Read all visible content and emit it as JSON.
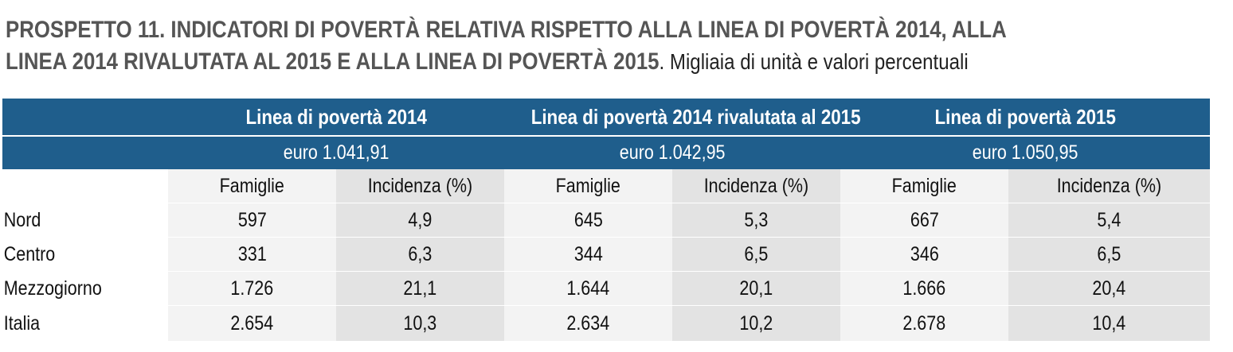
{
  "title": {
    "bold": "PROSPETTO 11. INDICATORI DI POVERTÀ RELATIVA RISPETTO ALLA LINEA DI POVERTÀ 2014, ALLA LINEA 2014 RIVALUTATA AL 2015 E ALLA LINEA DI POVERTÀ 2015",
    "bold_line1": "PROSPETTO 11. INDICATORI DI POVERTÀ RELATIVA RISPETTO ALLA LINEA DI POVERTÀ 2014, ALLA",
    "bold_line2": "LINEA 2014 RIVALUTATA AL 2015 E ALLA LINEA DI POVERTÀ 2015",
    "subtitle": ". Migliaia di unità e valori percentuali"
  },
  "table": {
    "groups": [
      {
        "label": "Linea di povertà 2014",
        "threshold": "euro 1.041,91"
      },
      {
        "label": "Linea di povertà 2014 rivalutata al 2015",
        "threshold": "euro 1.042,95"
      },
      {
        "label": "Linea di povertà 2015",
        "threshold": "euro 1.050,95"
      }
    ],
    "subheaders": [
      "Famiglie",
      "Incidenza (%)",
      "Famiglie",
      "Incidenza (%)",
      "Famiglie",
      "Incidenza (%)"
    ],
    "rows": [
      {
        "area": "Nord",
        "values": [
          "597",
          "4,9",
          "645",
          "5,3",
          "667",
          "5,4"
        ]
      },
      {
        "area": "Centro",
        "values": [
          "331",
          "6,3",
          "344",
          "6,5",
          "346",
          "6,5"
        ]
      },
      {
        "area": "Mezzogiorno",
        "values": [
          "1.726",
          "21,1",
          "1.644",
          "20,1",
          "1.666",
          "20,4"
        ]
      },
      {
        "area": "Italia",
        "values": [
          "2.654",
          "10,3",
          "2.634",
          "10,2",
          "2.678",
          "10,4"
        ]
      }
    ]
  },
  "colors": {
    "header_band": "#1f5e8c",
    "famiglie_column": "#f3f3f3",
    "incidenza_column": "#e3e3e3",
    "title_text": "#555555"
  }
}
